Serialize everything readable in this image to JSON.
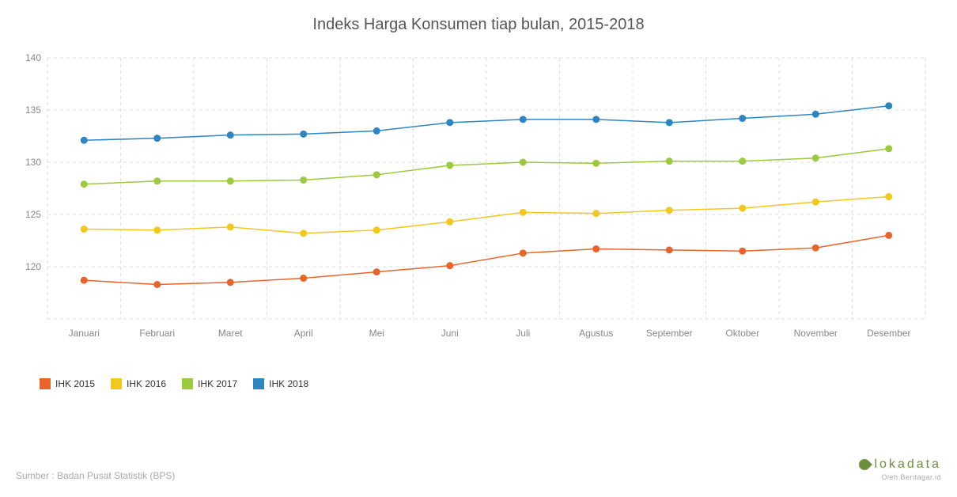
{
  "title": "Indeks Harga Konsumen tiap bulan, 2015-2018",
  "title_fontsize": 20,
  "title_color": "#555555",
  "source": "Sumber : Badan Pusat Statistik (BPS)",
  "brand_name": "lokadata",
  "brand_sub": "Oleh Beritagar.id",
  "brand_color": "#6c8f3f",
  "chart": {
    "type": "line",
    "background_color": "#ffffff",
    "grid_color": "#dddddd",
    "grid_dash": "4 4",
    "axis_label_color": "#888888",
    "axis_fontsize": 12,
    "ylim": [
      115,
      140
    ],
    "yticks": [
      120,
      125,
      130,
      135,
      140
    ],
    "categories": [
      "Januari",
      "Februari",
      "Maret",
      "April",
      "Mei",
      "Juni",
      "Juli",
      "Agustus",
      "September",
      "Oktober",
      "November",
      "Desember"
    ],
    "line_width": 1.5,
    "marker_radius": 4.5,
    "series": [
      {
        "name": "IHK 2015",
        "color": "#e7652b",
        "values": [
          118.7,
          118.3,
          118.5,
          118.9,
          119.5,
          120.1,
          121.3,
          121.7,
          121.6,
          121.5,
          121.8,
          123.0
        ]
      },
      {
        "name": "IHK 2016",
        "color": "#f2c81f",
        "values": [
          123.6,
          123.5,
          123.8,
          123.2,
          123.5,
          124.3,
          125.2,
          125.1,
          125.4,
          125.6,
          126.2,
          126.7
        ]
      },
      {
        "name": "IHK 2017",
        "color": "#9bca3c",
        "values": [
          127.9,
          128.2,
          128.2,
          128.3,
          128.8,
          129.7,
          130.0,
          129.9,
          130.1,
          130.1,
          130.4,
          131.3
        ]
      },
      {
        "name": "IHK 2018",
        "color": "#2e86c1",
        "values": [
          132.1,
          132.3,
          132.6,
          132.7,
          133.0,
          133.8,
          134.1,
          134.1,
          133.8,
          134.2,
          134.6,
          135.4
        ]
      }
    ]
  }
}
